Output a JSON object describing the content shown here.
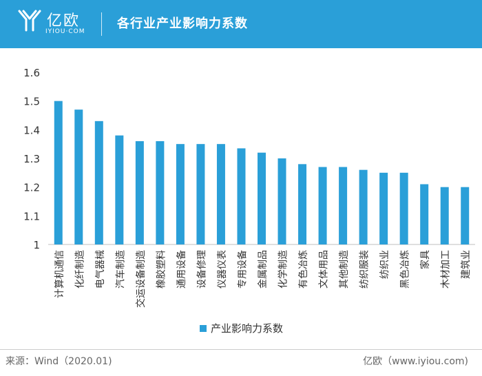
{
  "header": {
    "logo_text": "亿欧",
    "logo_sub": "IYIOU·COM",
    "title": "各行业产业影响力系数",
    "logo_icon": "iyiou-logo-icon"
  },
  "colors": {
    "header_bg": "#2a9fd8",
    "bar": "#2a9fd8"
  },
  "chart_data": {
    "type": "bar",
    "categories": [
      "计算机通信",
      "化纤制造",
      "电气器械",
      "汽车制造",
      "交运设备制造",
      "橡胶塑料",
      "通用设备",
      "设备修理",
      "仪器仪表",
      "专用设备",
      "金属制品",
      "化学制造",
      "有色冶炼",
      "文体用品",
      "其他制造",
      "纺织服装",
      "纺织业",
      "黑色冶炼",
      "家具",
      "木材加工",
      "建筑业"
    ],
    "series": [
      {
        "name": "产业影响力系数",
        "values": [
          1.5,
          1.47,
          1.43,
          1.38,
          1.36,
          1.36,
          1.35,
          1.35,
          1.35,
          1.335,
          1.32,
          1.3,
          1.28,
          1.27,
          1.27,
          1.26,
          1.25,
          1.25,
          1.21,
          1.2,
          1.2
        ]
      }
    ],
    "yticks": [
      "1",
      "1.1",
      "1.2",
      "1.3",
      "1.4",
      "1.5",
      "1.6"
    ],
    "ylim": [
      1,
      1.6
    ],
    "legend_position": "bottom-center",
    "grid": false,
    "title": "",
    "xlabel": "",
    "ylabel": ""
  },
  "footer": {
    "source": "来源：Wind（2020.01)",
    "brand": "亿欧（www.iyiou.com)"
  }
}
